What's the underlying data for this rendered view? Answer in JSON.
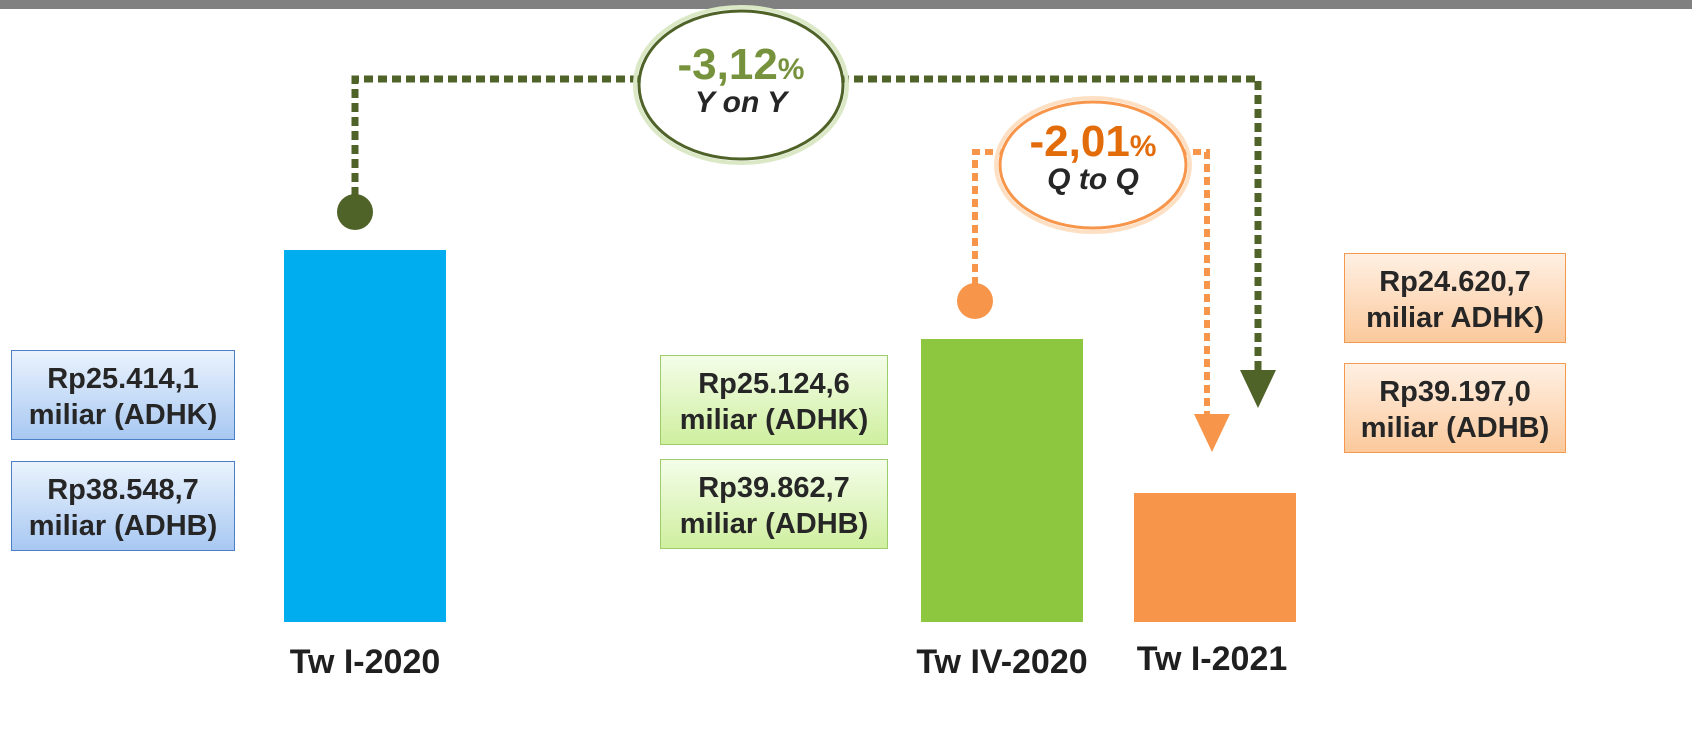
{
  "chart_data": {
    "type": "bar",
    "categories": [
      "Tw I-2020",
      "Tw IV-2020",
      "Tw I-2021"
    ],
    "values": [
      25414.1,
      25124.6,
      24620.7
    ],
    "unit": "miliar Rupiah (ADHK)",
    "adhb_values": [
      38548.7,
      39862.7,
      39197.0
    ],
    "colors": [
      "#00AEEF",
      "#8DC63F",
      "#F7954A"
    ],
    "growth": {
      "yoy": {
        "number": "-3,12",
        "sign": "%",
        "label": "Y on Y",
        "color": "#76923C"
      },
      "qtq": {
        "number": "-2,01",
        "sign": "%",
        "label": "Q to Q",
        "color": "#E36C0A"
      }
    }
  },
  "boxes": {
    "tw1_2020": {
      "adhk_line1": "Rp25.414,1",
      "adhk_line2": "miliar (ADHK)",
      "adhb_line1": "Rp38.548,7",
      "adhb_line2": "miliar (ADHB)"
    },
    "tw4_2020": {
      "adhk_line1": "Rp25.124,6",
      "adhk_line2": "miliar (ADHK)",
      "adhb_line1": "Rp39.862,7",
      "adhb_line2": "miliar (ADHB)"
    },
    "tw1_2021": {
      "adhk_line1": "Rp24.620,7",
      "adhk_line2": "miliar ADHK)",
      "adhb_line1": "Rp39.197,0",
      "adhb_line2": "miliar (ADHB)"
    }
  },
  "colors": {
    "yoy_line": "#4F6228",
    "qtq_line": "#F7954A",
    "top_bar": "#808080"
  }
}
